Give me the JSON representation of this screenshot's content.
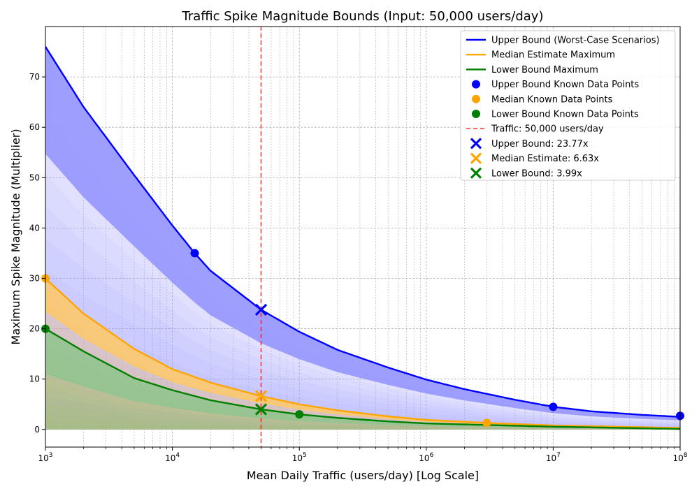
{
  "chart_data": {
    "type": "line",
    "title": "Traffic Spike Magnitude Bounds (Input: 50,000 users/day)",
    "xlabel": "Mean Daily Traffic (users/day) [Log Scale]",
    "ylabel": "Maximum Spike Magnitude (Multiplier)",
    "x_scale": "log",
    "xlim": [
      1000,
      100000000
    ],
    "ylim": [
      -3.5,
      80
    ],
    "x_ticks": [
      {
        "value": 1000,
        "base": "10",
        "exp": "3"
      },
      {
        "value": 10000,
        "base": "10",
        "exp": "4"
      },
      {
        "value": 100000,
        "base": "10",
        "exp": "5"
      },
      {
        "value": 1000000,
        "base": "10",
        "exp": "6"
      },
      {
        "value": 10000000,
        "base": "10",
        "exp": "7"
      },
      {
        "value": 100000000,
        "base": "10",
        "exp": "8"
      }
    ],
    "y_ticks": [
      0,
      10,
      20,
      30,
      40,
      50,
      60,
      70
    ],
    "grid": true,
    "legend_position": "top-right",
    "series": [
      {
        "name": "Upper Bound (Worst-Case Scenarios)",
        "kind": "line",
        "color": "#0000ff",
        "fill": "#9999ff",
        "x": [
          1000,
          2000,
          5000,
          10000,
          15000,
          20000,
          50000,
          100000,
          200000,
          500000,
          1000000,
          2000000,
          5000000,
          10000000,
          20000000,
          50000000,
          100000000
        ],
        "y": [
          76,
          64,
          50.5,
          40.5,
          35,
          31.5,
          23.77,
          19.4,
          15.8,
          12.3,
          9.9,
          8.0,
          5.9,
          4.5,
          3.6,
          2.9,
          2.5
        ]
      },
      {
        "name": "Median Estimate Maximum",
        "kind": "line",
        "color": "#ffa500",
        "fill": "#ffc966",
        "x": [
          1000,
          2000,
          5000,
          10000,
          20000,
          50000,
          100000,
          200000,
          500000,
          1000000,
          3000000,
          10000000,
          100000000
        ],
        "y": [
          30,
          23,
          16,
          12,
          9.3,
          6.63,
          5.0,
          3.8,
          2.6,
          1.9,
          1.3,
          0.8,
          0.3
        ]
      },
      {
        "name": "Lower Bound Maximum",
        "kind": "line",
        "color": "#008000",
        "fill": "#8fc48f",
        "x": [
          1000,
          2000,
          5000,
          10000,
          20000,
          50000,
          100000,
          200000,
          500000,
          1000000,
          10000000,
          100000000
        ],
        "y": [
          20,
          15.5,
          10.2,
          7.8,
          5.8,
          3.99,
          3.0,
          2.3,
          1.6,
          1.2,
          0.55,
          0.1
        ]
      },
      {
        "name": "Upper Bound Known Data Points",
        "kind": "scatter",
        "color": "#0000ff",
        "x": [
          15000,
          10000000,
          100000000
        ],
        "y": [
          35,
          4.5,
          2.7
        ]
      },
      {
        "name": "Median Known Data Points",
        "kind": "scatter",
        "color": "#ffa500",
        "x": [
          1000,
          3000000
        ],
        "y": [
          30,
          1.3
        ]
      },
      {
        "name": "Lower Bound Known Data Points",
        "kind": "scatter",
        "color": "#008000",
        "x": [
          1000,
          100000
        ],
        "y": [
          20,
          3.0
        ]
      },
      {
        "name": "Traffic: 50,000 users/day",
        "kind": "vline",
        "color": "#ff0000",
        "x": 50000
      },
      {
        "name": "Upper Bound: 23.77x",
        "kind": "marker",
        "color": "#0000ff",
        "x": 50000,
        "y": 23.77
      },
      {
        "name": "Median Estimate: 6.63x",
        "kind": "marker",
        "color": "#ffa500",
        "x": 50000,
        "y": 6.63
      },
      {
        "name": "Lower Bound: 3.99x",
        "kind": "marker",
        "color": "#008000",
        "x": 50000,
        "y": 3.99
      }
    ]
  }
}
